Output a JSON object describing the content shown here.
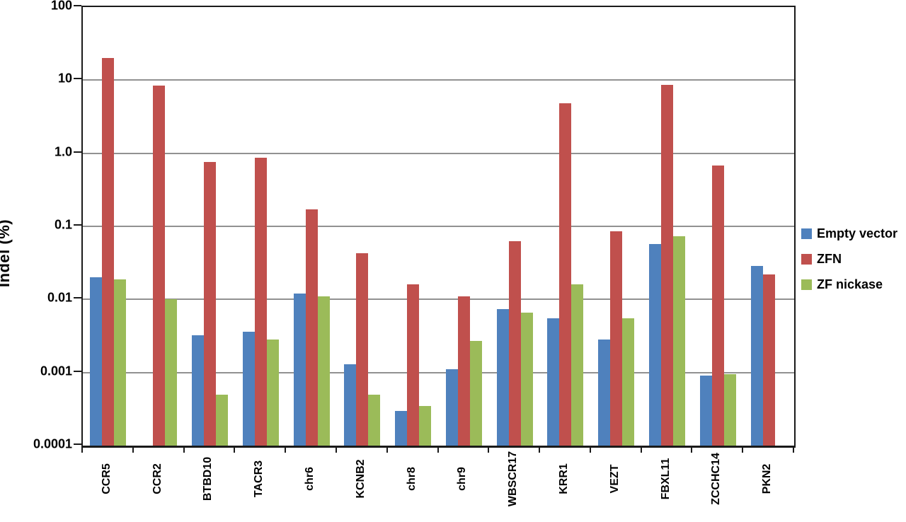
{
  "chart_data": {
    "type": "bar",
    "title": "",
    "xlabel": "",
    "ylabel": "Indel (%)",
    "y_scale": "log",
    "ylim": [
      0.0001,
      100
    ],
    "y_ticks": [
      {
        "label": "100",
        "value": 100
      },
      {
        "label": "10",
        "value": 10
      },
      {
        "label": "1.0",
        "value": 1.0
      },
      {
        "label": "0.1",
        "value": 0.1
      },
      {
        "label": "0.01",
        "value": 0.01
      },
      {
        "label": "0.001",
        "value": 0.001
      },
      {
        "label": "0.0001",
        "value": 0.0001
      }
    ],
    "grid": true,
    "legend_position": "right",
    "categories": [
      "CCR5",
      "CCR2",
      "BTBD10",
      "TACR3",
      "chr6",
      "KCNB2",
      "chr8",
      "chr9",
      "WBSCR17",
      "KRR1",
      "VEZT",
      "FBXL11",
      "ZCCHC14",
      "PKN2"
    ],
    "series": [
      {
        "name": "Empty vector",
        "color": "#4F81BD",
        "values": [
          0.02,
          null,
          0.0032,
          0.0036,
          0.012,
          0.0013,
          0.0003,
          0.0011,
          0.0073,
          0.0055,
          0.0028,
          0.057,
          0.0009,
          0.029
        ]
      },
      {
        "name": "ZFN",
        "color": "#C0504D",
        "values": [
          20,
          8.5,
          0.76,
          0.86,
          0.17,
          0.043,
          0.016,
          0.011,
          0.063,
          4.8,
          0.085,
          8.7,
          0.68,
          0.022
        ]
      },
      {
        "name": "ZF nickase",
        "color": "#9BBB59",
        "values": [
          0.019,
          0.01,
          0.0005,
          0.0028,
          0.011,
          0.0005,
          0.00035,
          0.0027,
          0.0066,
          0.016,
          0.0055,
          0.074,
          0.00095,
          null
        ]
      }
    ]
  }
}
